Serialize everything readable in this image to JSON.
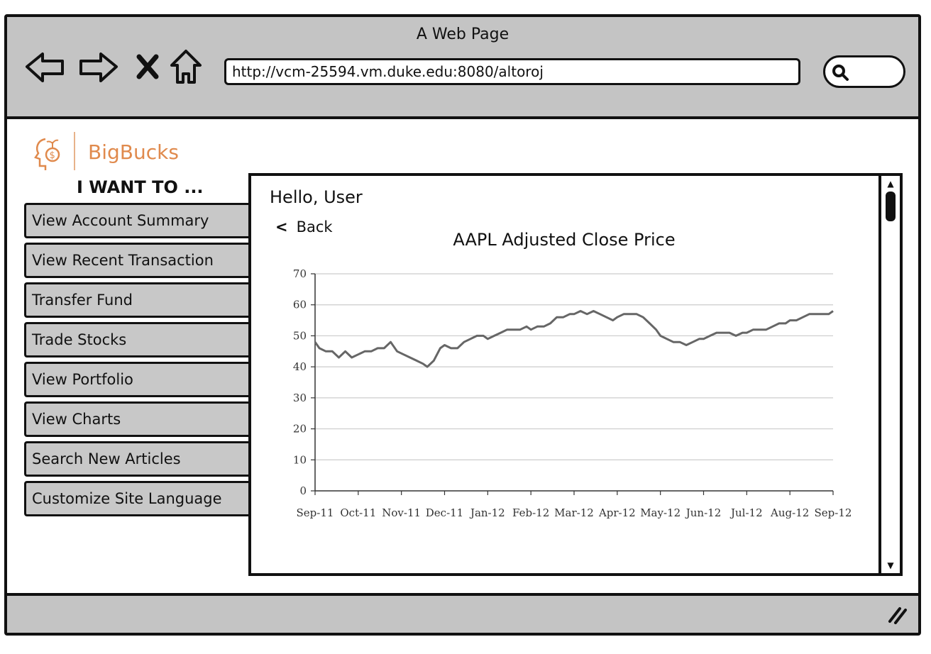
{
  "window": {
    "title": "A Web Page"
  },
  "browser": {
    "url": "http://vcm-25594.vm.duke.edu:8080/altoroj",
    "icons": [
      "back-arrow-icon",
      "forward-arrow-icon",
      "close-x-icon",
      "home-icon",
      "search-icon"
    ]
  },
  "brand": {
    "name": "BigBucks",
    "color": "#e08a4d"
  },
  "sidebar": {
    "heading": "I WANT TO ...",
    "items": [
      {
        "label": "View Account Summary"
      },
      {
        "label": "View Recent Transaction"
      },
      {
        "label": "Transfer Fund"
      },
      {
        "label": "Trade Stocks"
      },
      {
        "label": "View Portfolio"
      },
      {
        "label": "View Charts"
      },
      {
        "label": "Search New Articles"
      },
      {
        "label": "Customize Site Language"
      }
    ]
  },
  "main": {
    "greeting": "Hello, User",
    "back_label": "Back"
  },
  "chart_data": {
    "type": "line",
    "title": "AAPL Adjusted Close Price",
    "xlabel": "",
    "ylabel": "",
    "ylim": [
      0,
      70
    ],
    "yticks": [
      0,
      10,
      20,
      30,
      40,
      50,
      60,
      70
    ],
    "categories": [
      "Sep-11",
      "Oct-11",
      "Nov-11",
      "Dec-11",
      "Jan-12",
      "Feb-12",
      "Mar-12",
      "Apr-12",
      "May-12",
      "Jun-12",
      "Jul-12",
      "Aug-12",
      "Sep-12"
    ],
    "grid": true,
    "series": [
      {
        "color": "#666666",
        "x": [
          0,
          0.1,
          0.25,
          0.4,
          0.55,
          0.7,
          0.85,
          1.0,
          1.15,
          1.3,
          1.45,
          1.6,
          1.75,
          1.9,
          2.05,
          2.2,
          2.35,
          2.5,
          2.6,
          2.75,
          2.9,
          3.0,
          3.15,
          3.3,
          3.45,
          3.6,
          3.75,
          3.9,
          4.0,
          4.15,
          4.3,
          4.45,
          4.6,
          4.75,
          4.9,
          5.0,
          5.15,
          5.3,
          5.45,
          5.6,
          5.75,
          5.9,
          6.0,
          6.15,
          6.3,
          6.45,
          6.6,
          6.75,
          6.9,
          7.0,
          7.15,
          7.3,
          7.45,
          7.6,
          7.75,
          7.9,
          8.0,
          8.15,
          8.3,
          8.45,
          8.6,
          8.75,
          8.9,
          9.0,
          9.15,
          9.3,
          9.45,
          9.6,
          9.75,
          9.9,
          10.0,
          10.15,
          10.3,
          10.45,
          10.6,
          10.75,
          10.9,
          11.0,
          11.15,
          11.3,
          11.45,
          11.6,
          11.75,
          11.9,
          12.0
        ],
        "values": [
          48,
          46,
          45,
          45,
          43,
          45,
          43,
          44,
          45,
          45,
          46,
          46,
          48,
          45,
          44,
          43,
          42,
          41,
          40,
          42,
          46,
          47,
          46,
          46,
          48,
          49,
          50,
          50,
          49,
          50,
          51,
          52,
          52,
          52,
          53,
          52,
          53,
          53,
          54,
          56,
          56,
          57,
          57,
          58,
          57,
          58,
          57,
          56,
          55,
          56,
          57,
          57,
          57,
          56,
          54,
          52,
          50,
          49,
          48,
          48,
          47,
          48,
          49,
          49,
          50,
          51,
          51,
          51,
          50,
          51,
          51,
          52,
          52,
          52,
          53,
          54,
          54,
          55,
          55,
          56,
          57,
          57,
          57,
          57,
          58
        ]
      }
    ]
  }
}
